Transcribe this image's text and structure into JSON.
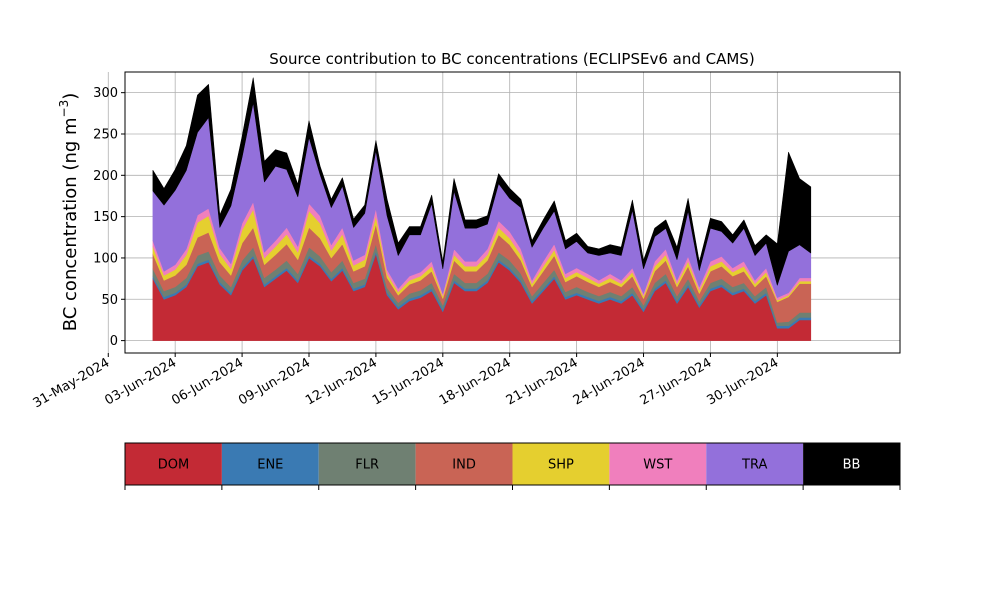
{
  "chart_data": {
    "type": "area",
    "stacked": true,
    "title": "Source contribution to BC concentrations (ECLIPSEv6 and CAMS)",
    "ylabel": "BC concentration (ng m",
    "ylabel_sup": "−3",
    "ylabel_close": ")",
    "xlabel": "",
    "ylim": [
      -15,
      325
    ],
    "yticks": [
      0,
      50,
      100,
      150,
      200,
      250,
      300
    ],
    "xlim": [
      "2024-05-31T18:00",
      "2024-07-05T12:00"
    ],
    "xticks": [
      "2024-05-31",
      "2024-06-03",
      "2024-06-06",
      "2024-06-09",
      "2024-06-12",
      "2024-06-15",
      "2024-06-18",
      "2024-06-21",
      "2024-06-24",
      "2024-06-27",
      "2024-06-30"
    ],
    "xtick_labels": [
      "31-May-2024",
      "03-Jun-2024",
      "06-Jun-2024",
      "09-Jun-2024",
      "12-Jun-2024",
      "15-Jun-2024",
      "18-Jun-2024",
      "21-Jun-2024",
      "24-Jun-2024",
      "27-Jun-2024",
      "30-Jun-2024"
    ],
    "grid": true,
    "legend_placement": "below-chart",
    "x": [
      "2024-06-02T00:00",
      "2024-06-02T12:00",
      "2024-06-03T00:00",
      "2024-06-03T12:00",
      "2024-06-04T00:00",
      "2024-06-04T12:00",
      "2024-06-05T00:00",
      "2024-06-05T12:00",
      "2024-06-06T00:00",
      "2024-06-06T12:00",
      "2024-06-07T00:00",
      "2024-06-07T12:00",
      "2024-06-08T00:00",
      "2024-06-08T12:00",
      "2024-06-09T00:00",
      "2024-06-09T12:00",
      "2024-06-10T00:00",
      "2024-06-10T12:00",
      "2024-06-11T00:00",
      "2024-06-11T12:00",
      "2024-06-12T00:00",
      "2024-06-12T12:00",
      "2024-06-13T00:00",
      "2024-06-13T12:00",
      "2024-06-14T00:00",
      "2024-06-14T12:00",
      "2024-06-15T00:00",
      "2024-06-15T12:00",
      "2024-06-16T00:00",
      "2024-06-16T12:00",
      "2024-06-17T00:00",
      "2024-06-17T12:00",
      "2024-06-18T00:00",
      "2024-06-18T12:00",
      "2024-06-19T00:00",
      "2024-06-19T12:00",
      "2024-06-20T00:00",
      "2024-06-20T12:00",
      "2024-06-21T00:00",
      "2024-06-21T12:00",
      "2024-06-22T00:00",
      "2024-06-22T12:00",
      "2024-06-23T00:00",
      "2024-06-23T12:00",
      "2024-06-24T00:00",
      "2024-06-24T12:00",
      "2024-06-25T00:00",
      "2024-06-25T12:00",
      "2024-06-26T00:00",
      "2024-06-26T12:00",
      "2024-06-27T00:00",
      "2024-06-27T12:00",
      "2024-06-28T00:00",
      "2024-06-28T12:00",
      "2024-06-29T00:00",
      "2024-06-29T12:00",
      "2024-06-30T00:00",
      "2024-06-30T12:00",
      "2024-07-01T00:00",
      "2024-07-01T12:00"
    ],
    "series": [
      {
        "name": "DOM",
        "color": "#c32a35",
        "values": [
          75,
          50,
          55,
          65,
          90,
          95,
          68,
          55,
          85,
          100,
          65,
          75,
          85,
          70,
          100,
          90,
          72,
          85,
          60,
          65,
          105,
          55,
          38,
          48,
          52,
          60,
          35,
          70,
          60,
          60,
          70,
          95,
          85,
          70,
          45,
          60,
          75,
          50,
          55,
          50,
          45,
          50,
          45,
          55,
          35,
          60,
          70,
          45,
          65,
          40,
          60,
          65,
          55,
          60,
          45,
          55,
          15,
          15,
          25,
          25
        ]
      },
      {
        "name": "ENE",
        "color": "#3a7ab3",
        "values": [
          3,
          3,
          3,
          3,
          3,
          3,
          3,
          3,
          3,
          3,
          3,
          3,
          3,
          3,
          3,
          3,
          3,
          3,
          3,
          3,
          3,
          3,
          3,
          3,
          3,
          3,
          3,
          3,
          3,
          3,
          3,
          3,
          3,
          3,
          3,
          3,
          3,
          3,
          3,
          3,
          3,
          3,
          3,
          3,
          3,
          3,
          3,
          3,
          3,
          3,
          3,
          3,
          3,
          3,
          3,
          3,
          3,
          3,
          3,
          3
        ]
      },
      {
        "name": "FLR",
        "color": "#6f8072",
        "values": [
          9,
          7,
          7,
          8,
          10,
          10,
          8,
          7,
          9,
          10,
          8,
          8,
          9,
          8,
          10,
          9,
          8,
          9,
          7,
          7,
          9,
          6,
          5,
          6,
          6,
          7,
          5,
          8,
          7,
          7,
          8,
          9,
          9,
          8,
          6,
          7,
          8,
          6,
          7,
          6,
          6,
          6,
          6,
          7,
          5,
          7,
          8,
          6,
          7,
          5,
          7,
          7,
          7,
          7,
          6,
          7,
          4,
          5,
          6,
          6
        ]
      },
      {
        "name": "IND",
        "color": "#c96455",
        "values": [
          18,
          13,
          14,
          16,
          22,
          23,
          16,
          14,
          21,
          24,
          16,
          18,
          20,
          17,
          24,
          22,
          17,
          20,
          14,
          15,
          24,
          12,
          9,
          11,
          12,
          14,
          8,
          16,
          14,
          14,
          16,
          21,
          19,
          16,
          11,
          14,
          17,
          12,
          13,
          12,
          11,
          12,
          11,
          13,
          8,
          14,
          16,
          11,
          15,
          9,
          14,
          15,
          13,
          14,
          11,
          13,
          25,
          30,
          35,
          35
        ]
      },
      {
        "name": "SHP",
        "color": "#e5cf2f",
        "values": [
          9,
          6,
          7,
          12,
          18,
          20,
          10,
          8,
          16,
          22,
          8,
          10,
          12,
          9,
          20,
          18,
          9,
          12,
          7,
          8,
          10,
          5,
          4,
          5,
          5,
          6,
          3,
          7,
          6,
          6,
          7,
          9,
          8,
          7,
          4,
          6,
          7,
          5,
          5,
          5,
          4,
          5,
          4,
          5,
          3,
          6,
          7,
          4,
          6,
          4,
          6,
          6,
          5,
          6,
          4,
          5,
          2,
          2,
          3,
          3
        ]
      },
      {
        "name": "WST",
        "color": "#f07fbd",
        "values": [
          7,
          5,
          6,
          7,
          9,
          9,
          7,
          6,
          8,
          9,
          7,
          7,
          8,
          7,
          9,
          9,
          7,
          8,
          6,
          6,
          9,
          5,
          4,
          5,
          5,
          6,
          3,
          7,
          6,
          6,
          7,
          8,
          8,
          7,
          4,
          6,
          7,
          5,
          5,
          5,
          4,
          5,
          4,
          5,
          3,
          6,
          7,
          4,
          6,
          4,
          6,
          6,
          5,
          6,
          4,
          5,
          3,
          3,
          4,
          4
        ]
      },
      {
        "name": "TRA",
        "color": "#9370db",
        "values": [
          60,
          80,
          90,
          95,
          100,
          110,
          25,
          70,
          80,
          120,
          85,
          90,
          70,
          60,
          80,
          50,
          45,
          50,
          40,
          50,
          70,
          65,
          40,
          50,
          45,
          70,
          30,
          70,
          40,
          40,
          30,
          45,
          40,
          50,
          40,
          40,
          40,
          30,
          32,
          25,
          30,
          25,
          30,
          70,
          30,
          30,
          25,
          25,
          55,
          20,
          40,
          30,
          30,
          40,
          30,
          30,
          15,
          50,
          40,
          30
        ]
      },
      {
        "name": "BB",
        "color": "#000000",
        "values": [
          25,
          20,
          25,
          30,
          45,
          40,
          15,
          20,
          25,
          30,
          25,
          20,
          20,
          15,
          20,
          10,
          10,
          10,
          10,
          10,
          12,
          20,
          15,
          10,
          10,
          10,
          8,
          15,
          10,
          10,
          10,
          12,
          12,
          10,
          8,
          10,
          12,
          10,
          10,
          8,
          8,
          10,
          10,
          12,
          10,
          10,
          10,
          15,
          15,
          10,
          12,
          12,
          10,
          10,
          12,
          10,
          50,
          120,
          80,
          80
        ]
      }
    ]
  }
}
